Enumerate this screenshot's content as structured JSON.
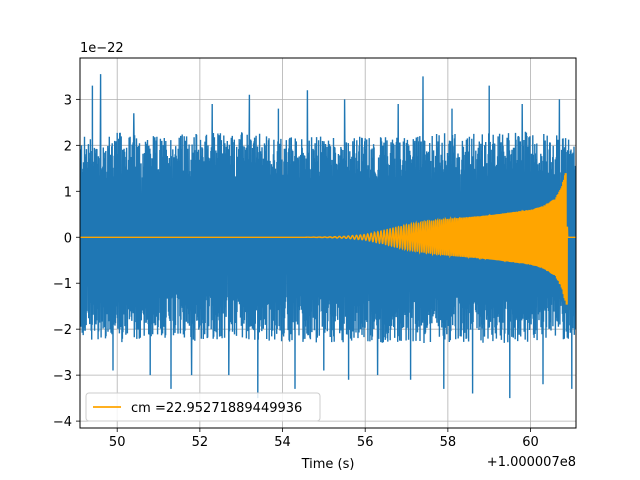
{
  "chart_data": {
    "type": "line",
    "title": "",
    "xlabel": "Time (s)",
    "ylabel": "",
    "x_offset_label": "+1.000007e8",
    "y_scale_label": "1e−22",
    "xlim": [
      49.1,
      61.1
    ],
    "ylim": [
      -4.15,
      3.9
    ],
    "x_ticks": [
      {
        "value": 50,
        "label": "50"
      },
      {
        "value": 52,
        "label": "52"
      },
      {
        "value": 54,
        "label": "54"
      },
      {
        "value": 56,
        "label": "56"
      },
      {
        "value": 58,
        "label": "58"
      },
      {
        "value": 60,
        "label": "60"
      }
    ],
    "y_ticks": [
      {
        "value": -4,
        "label": "−4"
      },
      {
        "value": -3,
        "label": "−3"
      },
      {
        "value": -2,
        "label": "−2"
      },
      {
        "value": -1,
        "label": "−1"
      },
      {
        "value": 0,
        "label": "0"
      },
      {
        "value": 1,
        "label": "1"
      },
      {
        "value": 2,
        "label": "2"
      },
      {
        "value": 3,
        "label": "3"
      }
    ],
    "grid": true,
    "legend": {
      "placement": "lower-left",
      "entries": [
        {
          "label": "cm =22.95271889449936",
          "color": "#ffa500"
        }
      ]
    },
    "series": [
      {
        "color": "#1f77b4",
        "kind": "noise",
        "envelope": {
          "x": [
            49.1,
            50.0,
            51.0,
            52.0,
            53.0,
            54.0,
            55.0,
            56.0,
            57.0,
            58.0,
            59.0,
            60.0,
            61.1
          ],
          "upper": [
            2.2,
            2.3,
            2.2,
            2.3,
            2.3,
            2.2,
            2.2,
            2.2,
            2.2,
            2.3,
            2.3,
            2.3,
            2.2
          ],
          "lower": [
            -2.2,
            -2.3,
            -2.2,
            -2.3,
            -2.2,
            -2.3,
            -2.3,
            -2.3,
            -2.3,
            -2.3,
            -2.3,
            -2.3,
            -2.2
          ]
        },
        "peaks": [
          {
            "x": 49.4,
            "y": 3.3
          },
          {
            "x": 49.6,
            "y": 3.55
          },
          {
            "x": 49.9,
            "y": -2.9
          },
          {
            "x": 50.4,
            "y": 2.7
          },
          {
            "x": 50.8,
            "y": -3.0
          },
          {
            "x": 51.3,
            "y": -3.3
          },
          {
            "x": 51.8,
            "y": -3.0
          },
          {
            "x": 52.3,
            "y": 2.9
          },
          {
            "x": 52.7,
            "y": -3.0
          },
          {
            "x": 53.2,
            "y": 3.1
          },
          {
            "x": 53.4,
            "y": -3.5
          },
          {
            "x": 53.9,
            "y": 2.8
          },
          {
            "x": 54.3,
            "y": -3.3
          },
          {
            "x": 54.6,
            "y": 3.2
          },
          {
            "x": 55.0,
            "y": -2.9
          },
          {
            "x": 55.5,
            "y": 3.0
          },
          {
            "x": 55.6,
            "y": -3.1
          },
          {
            "x": 56.3,
            "y": -3.0
          },
          {
            "x": 56.8,
            "y": 2.9
          },
          {
            "x": 57.1,
            "y": -3.1
          },
          {
            "x": 57.4,
            "y": 3.5
          },
          {
            "x": 57.9,
            "y": -3.3
          },
          {
            "x": 58.1,
            "y": 2.8
          },
          {
            "x": 58.6,
            "y": -3.4
          },
          {
            "x": 59.0,
            "y": 3.3
          },
          {
            "x": 59.5,
            "y": -3.5
          },
          {
            "x": 59.8,
            "y": 2.9
          },
          {
            "x": 60.3,
            "y": -3.2
          },
          {
            "x": 60.7,
            "y": 3.0
          },
          {
            "x": 61.0,
            "y": -3.3
          }
        ]
      },
      {
        "name": "cm =22.95271889449936",
        "color": "#ffa500",
        "kind": "chirp",
        "envelope": {
          "x": [
            49.1,
            54.5,
            55.0,
            55.5,
            56.0,
            56.5,
            57.0,
            57.5,
            58.0,
            58.5,
            59.0,
            59.5,
            60.0,
            60.3,
            60.6,
            60.75,
            60.85,
            60.9,
            61.1
          ],
          "amplitude": [
            0.0,
            0.0,
            0.005,
            0.02,
            0.06,
            0.16,
            0.27,
            0.35,
            0.4,
            0.44,
            0.48,
            0.54,
            0.6,
            0.68,
            0.85,
            1.1,
            1.45,
            0.0,
            0.0
          ]
        },
        "peak": {
          "x": 60.85,
          "upper": 1.38,
          "lower": -1.45
        }
      }
    ]
  }
}
